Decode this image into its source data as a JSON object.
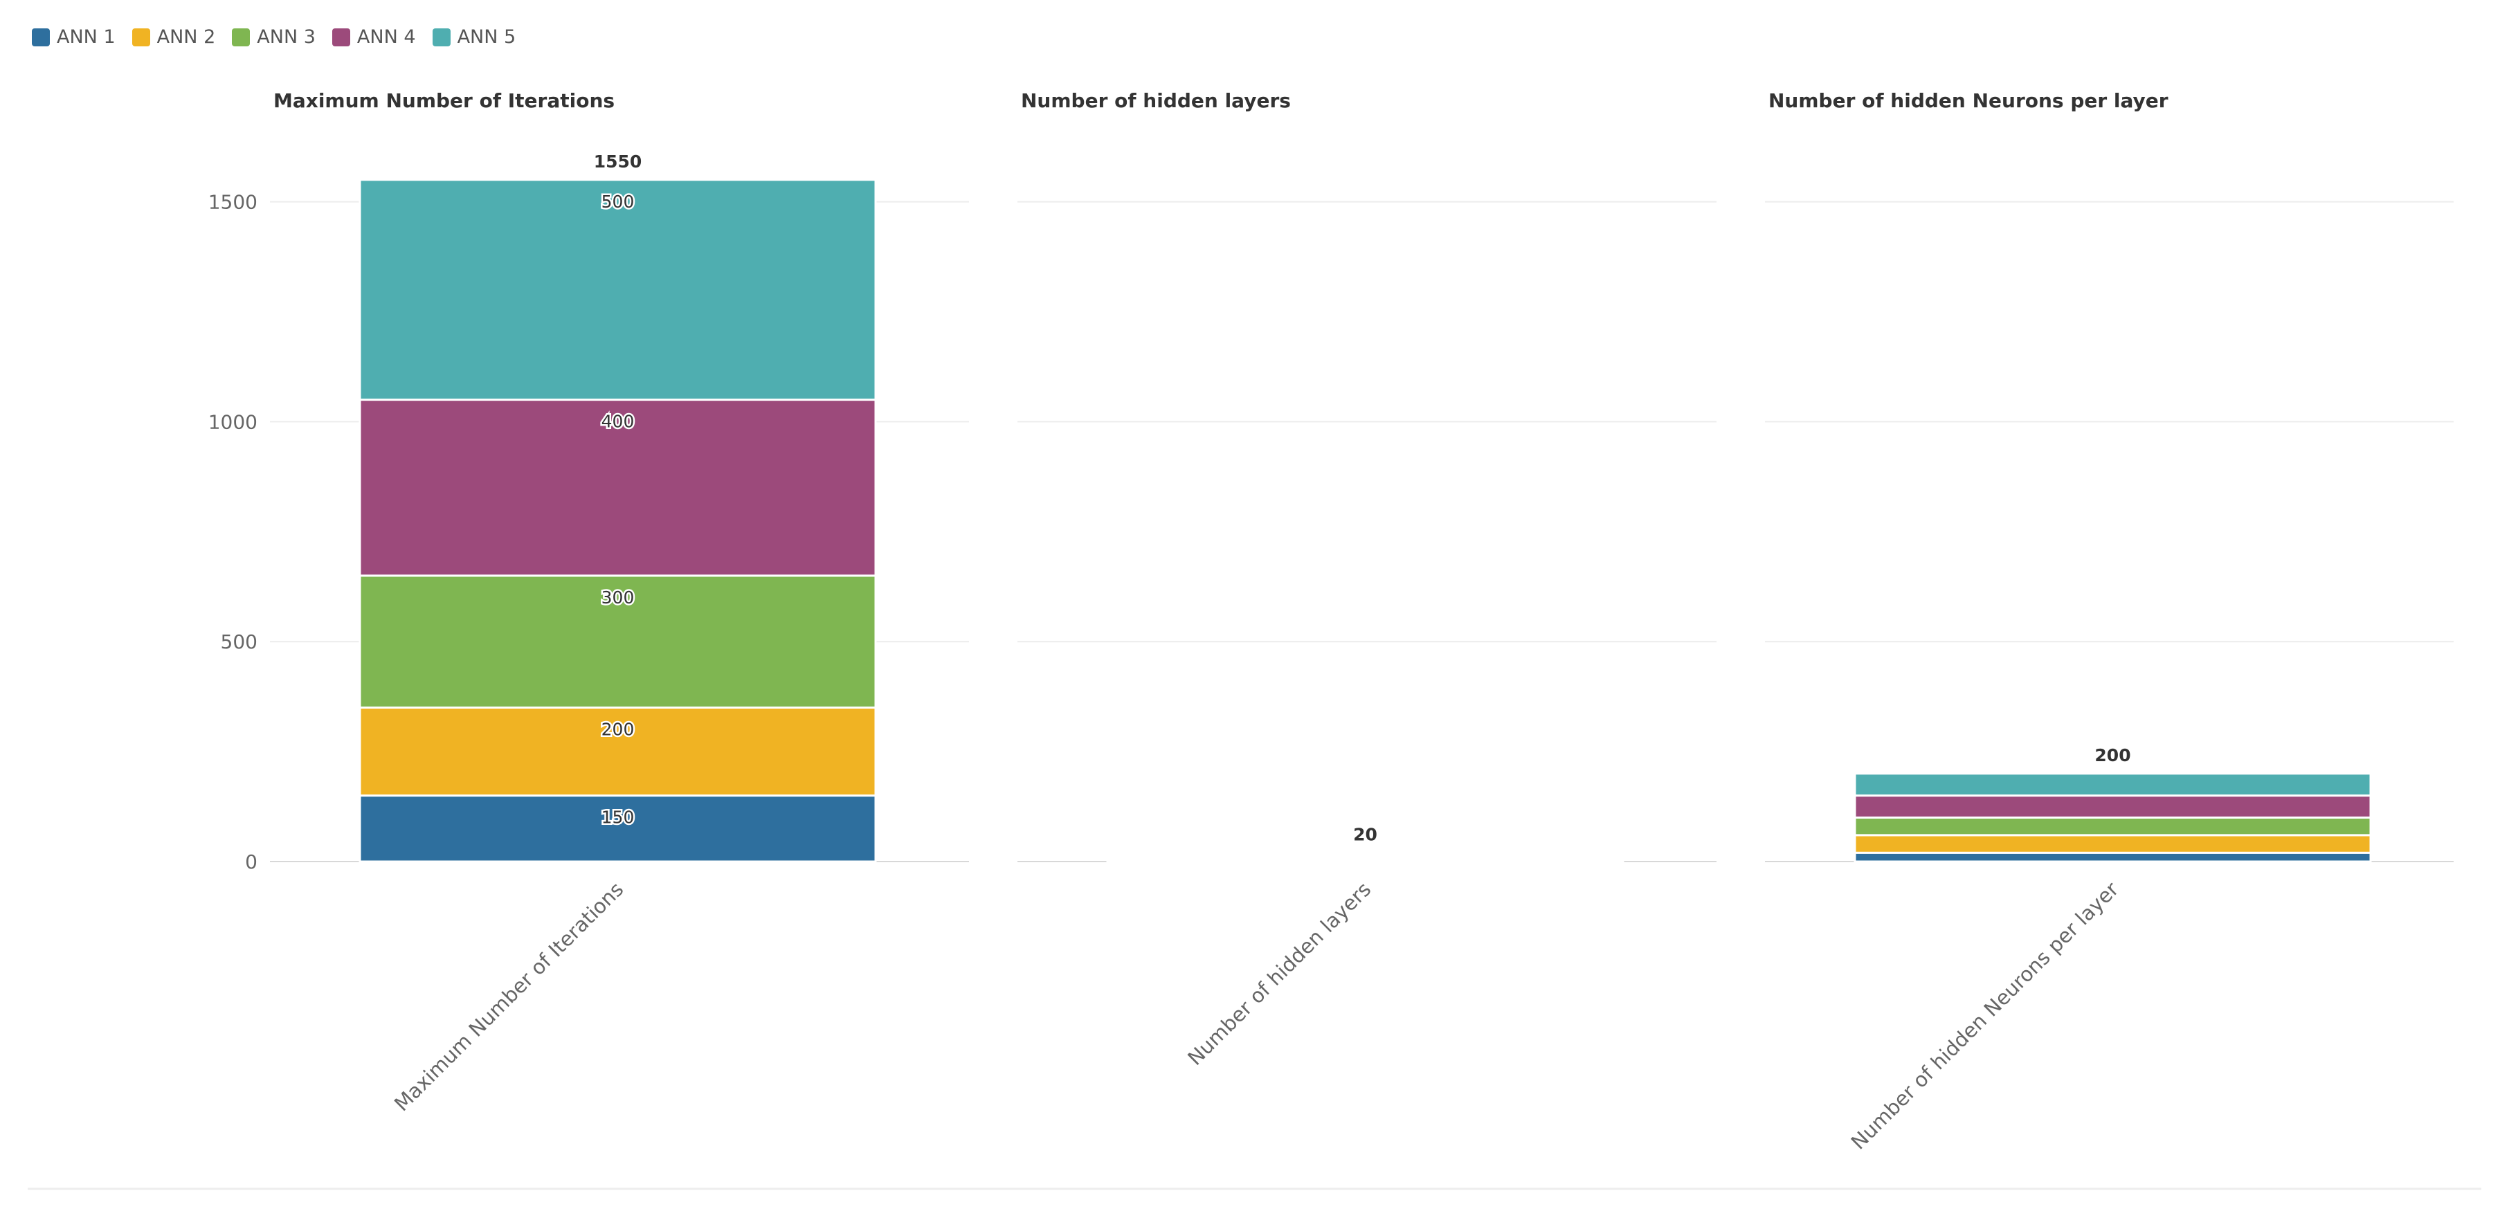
{
  "chart_data": {
    "type": "bar",
    "stacked": true,
    "categories": [
      "Maximum Number of Iterations",
      "Number of hidden layers",
      "Number of hidden Neurons per layer"
    ],
    "panel_titles": [
      "Maximum Number of Iterations",
      "Number of hidden layers",
      "Number of hidden Neurons per layer"
    ],
    "series": [
      {
        "name": "ANN 1",
        "color": "#2e6f9e",
        "values": [
          150,
          4,
          20
        ]
      },
      {
        "name": "ANN 2",
        "color": "#f0b323",
        "values": [
          200,
          4,
          40
        ]
      },
      {
        "name": "ANN 3",
        "color": "#7fb651",
        "values": [
          300,
          4,
          40
        ]
      },
      {
        "name": "ANN 4",
        "color": "#9c4a7b",
        "values": [
          400,
          4,
          50
        ]
      },
      {
        "name": "ANN 5",
        "color": "#4faeb0",
        "values": [
          500,
          4,
          50
        ]
      }
    ],
    "totals": [
      1550,
      20,
      200
    ],
    "show_segment_labels": [
      true,
      false,
      false
    ],
    "yticks": [
      0,
      500,
      1000,
      1500
    ],
    "ylim": [
      0,
      1600
    ],
    "grid": true,
    "legend_position": "top-left"
  }
}
